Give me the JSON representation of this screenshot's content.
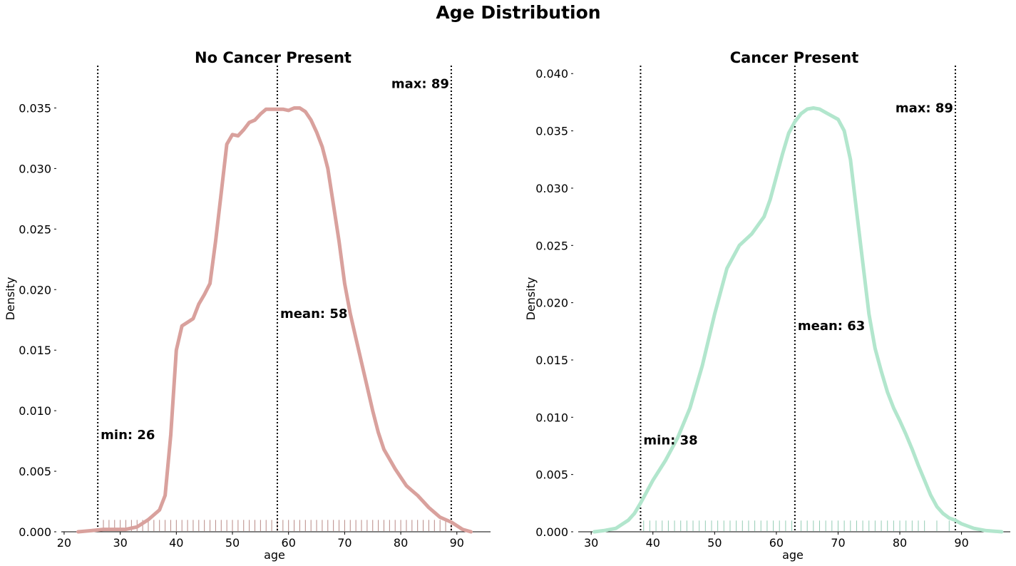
{
  "figure": {
    "title": "Age Distribution"
  },
  "chart_data": [
    {
      "type": "line",
      "title": "No Cancer Present",
      "xlabel": "age",
      "ylabel": "Density",
      "xlim": [
        19.5,
        96.0
      ],
      "ylim": [
        0,
        0.0385
      ],
      "xticks": [
        20,
        30,
        40,
        50,
        60,
        70,
        80,
        90
      ],
      "yticks": [
        0.0,
        0.005,
        0.01,
        0.015,
        0.02,
        0.025,
        0.03,
        0.035
      ],
      "color": "#d9a19d",
      "rug_color": "#b88a86",
      "series": [
        {
          "x": [
            22.5,
            25,
            27,
            29,
            31,
            33,
            35,
            37,
            38,
            39,
            40,
            41,
            42,
            43,
            44,
            45,
            46,
            47,
            48,
            49,
            50,
            51,
            52,
            53,
            54,
            55,
            56,
            57,
            58,
            59,
            60,
            61,
            62,
            63,
            64,
            65,
            66,
            67,
            68,
            69,
            70,
            71,
            72,
            73,
            74,
            75,
            76,
            77,
            78,
            79,
            80,
            81,
            82,
            83,
            84,
            85,
            86,
            87,
            88,
            89,
            90,
            91,
            92.5
          ],
          "y": [
            0.0,
            0.0001,
            0.0002,
            0.0002,
            0.0002,
            0.0004,
            0.001,
            0.0018,
            0.003,
            0.008,
            0.015,
            0.017,
            0.0173,
            0.0176,
            0.0188,
            0.0196,
            0.0205,
            0.024,
            0.028,
            0.032,
            0.0328,
            0.0327,
            0.0332,
            0.0338,
            0.034,
            0.0345,
            0.0349,
            0.0349,
            0.0349,
            0.0349,
            0.0348,
            0.035,
            0.035,
            0.0347,
            0.034,
            0.033,
            0.0318,
            0.03,
            0.027,
            0.024,
            0.0205,
            0.018,
            0.016,
            0.014,
            0.012,
            0.01,
            0.0082,
            0.0068,
            0.006,
            0.0052,
            0.0045,
            0.0038,
            0.0034,
            0.003,
            0.0025,
            0.002,
            0.0016,
            0.0012,
            0.001,
            0.0008,
            0.0005,
            0.0002,
            0.0
          ]
        }
      ],
      "rug": [
        27,
        28,
        29,
        30,
        31,
        32,
        33,
        34,
        35,
        36,
        37,
        38,
        39,
        40,
        41,
        42,
        43,
        44,
        45,
        46,
        47,
        48,
        49,
        50,
        51,
        52,
        53,
        54,
        55,
        56,
        57,
        58,
        59,
        60,
        61,
        62,
        63,
        64,
        65,
        66,
        67,
        68,
        69,
        70,
        71,
        72,
        73,
        74,
        75,
        76,
        77,
        78,
        79,
        80,
        81,
        82,
        83,
        84,
        85,
        86,
        87,
        88,
        89
      ],
      "vlines": [
        {
          "x": 26,
          "label": "min: 26",
          "label_y": 0.008
        },
        {
          "x": 58,
          "label": "mean: 58",
          "label_y": 0.018
        },
        {
          "x": 89,
          "label": "max: 89",
          "label_y": 0.037,
          "align": "end"
        }
      ]
    },
    {
      "type": "line",
      "title": "Cancer Present",
      "xlabel": "age",
      "ylabel": "Density",
      "xlim": [
        27.9,
        97.9
      ],
      "ylim": [
        0,
        0.0407
      ],
      "xticks": [
        30,
        40,
        50,
        60,
        70,
        80,
        90
      ],
      "yticks": [
        0.0,
        0.005,
        0.01,
        0.015,
        0.02,
        0.025,
        0.03,
        0.035,
        0.04
      ],
      "color": "#b2e6cd",
      "rug_color": "#94ccb4",
      "series": [
        {
          "x": [
            30.5,
            32,
            34,
            36,
            37,
            38,
            39,
            40,
            42,
            44,
            46,
            48,
            50,
            52,
            54,
            56,
            58,
            59,
            60,
            61,
            62,
            63,
            64,
            65,
            66,
            67,
            68,
            69,
            70,
            71,
            72,
            73,
            74,
            75,
            76,
            77,
            78,
            79,
            80,
            81,
            82,
            83,
            84,
            85,
            86,
            87,
            88,
            89,
            90,
            92,
            94,
            96.5
          ],
          "y": [
            0.0,
            0.0001,
            0.0003,
            0.001,
            0.0016,
            0.0025,
            0.0035,
            0.0045,
            0.0062,
            0.0082,
            0.0108,
            0.0145,
            0.019,
            0.023,
            0.025,
            0.026,
            0.0275,
            0.029,
            0.031,
            0.033,
            0.0348,
            0.0358,
            0.0365,
            0.0369,
            0.037,
            0.0369,
            0.0366,
            0.0363,
            0.036,
            0.035,
            0.0325,
            0.028,
            0.0235,
            0.019,
            0.016,
            0.014,
            0.0122,
            0.0108,
            0.0097,
            0.0085,
            0.0072,
            0.0058,
            0.0045,
            0.0032,
            0.0022,
            0.0016,
            0.0012,
            0.001,
            0.0007,
            0.0003,
            0.0001,
            0.0
          ]
        }
      ],
      "rug": [
        38.5,
        39.5,
        40.5,
        41.5,
        42.5,
        43.5,
        44.5,
        45.5,
        46.5,
        47.5,
        48.5,
        49.5,
        50.5,
        51.5,
        52.5,
        53.5,
        54.5,
        55.5,
        56.5,
        57.5,
        58.5,
        59.5,
        60.5,
        61.5,
        62.5,
        64,
        65,
        66,
        67,
        68,
        69,
        70,
        71,
        72,
        73,
        74,
        75,
        76,
        77,
        78,
        79,
        80,
        81,
        82,
        83,
        84,
        86,
        88
      ],
      "vlines": [
        {
          "x": 38,
          "label": "min: 38",
          "label_y": 0.008
        },
        {
          "x": 63,
          "label": "mean: 63",
          "label_y": 0.018
        },
        {
          "x": 89,
          "label": "max: 89",
          "label_y": 0.037,
          "align": "end"
        }
      ]
    }
  ]
}
